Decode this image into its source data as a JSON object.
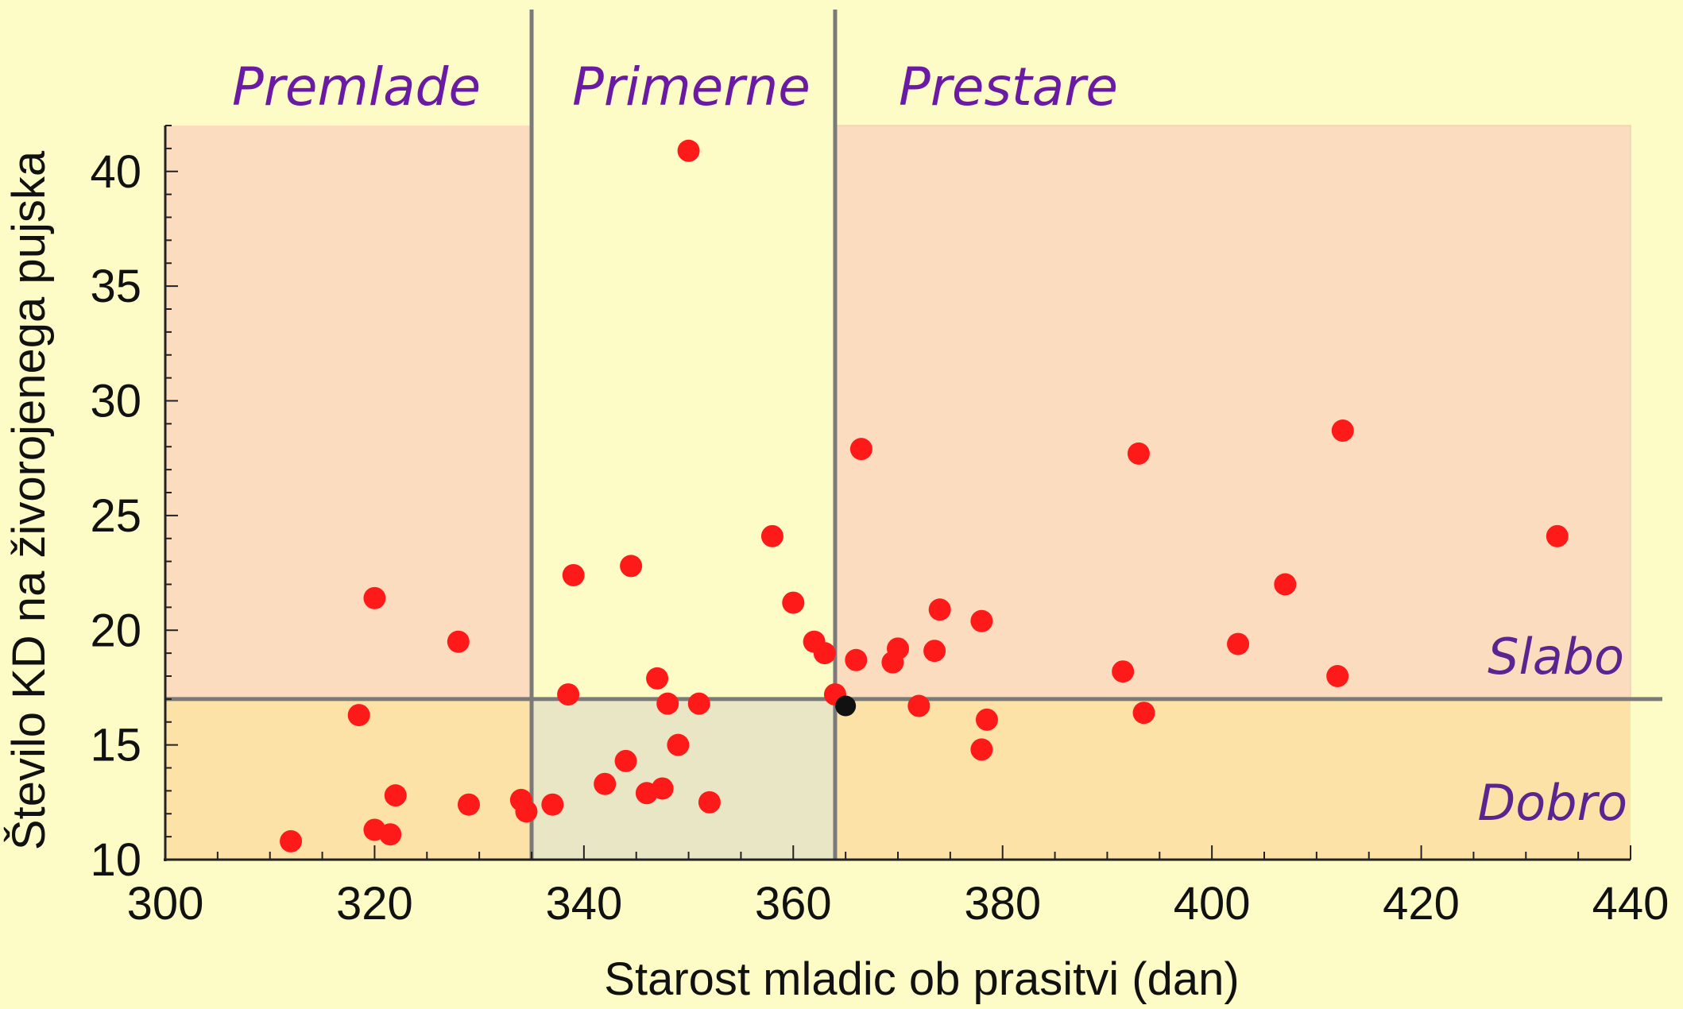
{
  "chart_data": {
    "type": "scatter",
    "xlabel": "Starost mladic ob prasitvi (dan)",
    "ylabel": "Število KD na živorojenega pujska",
    "xlim": [
      300,
      440
    ],
    "ylim": [
      10,
      42
    ],
    "x_ticks": [
      300,
      320,
      340,
      360,
      380,
      400,
      420,
      440
    ],
    "y_ticks": [
      10,
      15,
      20,
      25,
      30,
      35,
      40
    ],
    "grid": false,
    "region_labels": [
      "Premlade",
      "Primerne",
      "Prestare"
    ],
    "quality_labels": [
      "Slabo",
      "Dobro"
    ],
    "x_thresholds": [
      335,
      364
    ],
    "y_threshold": 17,
    "colors": {
      "background": "#fdfbc6",
      "points": "#ff1a1a",
      "highlight_point": "#111111",
      "slabo_zone": "#fcdcbf",
      "dobro_zone": "#fce2a6",
      "primerne_dobro_zone": "#e9e6c6",
      "lines": "#7a7a7a",
      "region_text": "#6a1aa3"
    },
    "series": [
      {
        "points": [
          [
            312,
            10.8
          ],
          [
            318.5,
            16.3
          ],
          [
            320,
            21.4
          ],
          [
            320,
            11.3
          ],
          [
            321.5,
            11.1
          ],
          [
            322,
            12.8
          ],
          [
            328,
            19.5
          ],
          [
            329,
            12.4
          ],
          [
            334,
            12.6
          ],
          [
            334.5,
            12.1
          ],
          [
            337,
            12.4
          ],
          [
            338.5,
            17.2
          ],
          [
            339,
            22.4
          ],
          [
            342,
            13.3
          ],
          [
            344,
            14.3
          ],
          [
            344.5,
            22.8
          ],
          [
            346,
            12.9
          ],
          [
            347,
            17.9
          ],
          [
            347.5,
            13.1
          ],
          [
            348,
            16.8
          ],
          [
            349,
            15.0
          ],
          [
            350,
            40.9
          ],
          [
            351,
            16.8
          ],
          [
            352,
            12.5
          ],
          [
            358,
            24.1
          ],
          [
            360,
            21.2
          ],
          [
            362,
            19.5
          ],
          [
            363,
            19.0
          ],
          [
            364,
            17.2
          ],
          [
            366,
            18.7
          ],
          [
            366.5,
            27.9
          ],
          [
            369.5,
            18.6
          ],
          [
            370,
            19.2
          ],
          [
            372,
            16.7
          ],
          [
            373.5,
            19.1
          ],
          [
            374,
            20.9
          ],
          [
            378,
            20.4
          ],
          [
            378,
            14.8
          ],
          [
            378.5,
            16.1
          ],
          [
            391.5,
            18.2
          ],
          [
            393,
            27.7
          ],
          [
            393.5,
            16.4
          ],
          [
            402.5,
            19.4
          ],
          [
            407,
            22.0
          ],
          [
            412,
            18.0
          ],
          [
            412.5,
            28.7
          ],
          [
            433,
            24.1
          ]
        ],
        "highlight": [
          365,
          16.7
        ]
      }
    ]
  }
}
